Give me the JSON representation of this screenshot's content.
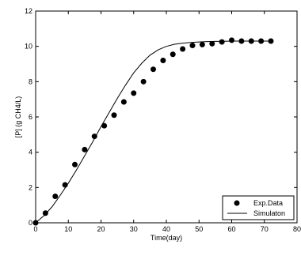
{
  "chart_data": {
    "type": "scatter",
    "title": "",
    "xlabel": "Time(day)",
    "ylabel": "[P] (g CH4/L)",
    "xlim": [
      0,
      80
    ],
    "ylim": [
      0,
      12
    ],
    "xticks": [
      "0",
      "10",
      "20",
      "30",
      "40",
      "50",
      "60",
      "70",
      "80"
    ],
    "yticks": [
      "0",
      "2",
      "4",
      "6",
      "8",
      "10",
      "12"
    ],
    "grid": false,
    "legend_position": "bottom-right",
    "series": [
      {
        "name": "Exp.Data",
        "kind": "markers",
        "color": "#000000",
        "x": [
          0,
          3,
          6,
          9,
          12,
          15,
          18,
          21,
          24,
          27,
          30,
          33,
          36,
          39,
          42,
          45,
          48,
          51,
          54,
          57,
          60,
          63,
          66,
          69,
          72
        ],
        "y": [
          0,
          0.55,
          1.5,
          2.15,
          3.3,
          4.15,
          4.9,
          5.5,
          6.1,
          6.85,
          7.35,
          8.0,
          8.7,
          9.2,
          9.55,
          9.85,
          10.05,
          10.1,
          10.15,
          10.25,
          10.35,
          10.3,
          10.3,
          10.3,
          10.3
        ]
      },
      {
        "name": "Simulaton",
        "kind": "line",
        "color": "#000000",
        "x": [
          0,
          2.5,
          5,
          7.5,
          10,
          12.5,
          15,
          17.5,
          20,
          22.5,
          25,
          27.5,
          30,
          32.5,
          35,
          37.5,
          40,
          42.5,
          45,
          47.5,
          50,
          52.5,
          55,
          57.5,
          60,
          62.5,
          65,
          67.5,
          70,
          72
        ],
        "y": [
          0,
          0.4,
          0.9,
          1.55,
          2.25,
          3.0,
          3.8,
          4.6,
          5.45,
          6.25,
          7.05,
          7.8,
          8.5,
          9.05,
          9.5,
          9.8,
          10.0,
          10.12,
          10.18,
          10.22,
          10.25,
          10.27,
          10.28,
          10.29,
          10.3,
          10.3,
          10.3,
          10.3,
          10.3,
          10.3
        ]
      }
    ]
  }
}
